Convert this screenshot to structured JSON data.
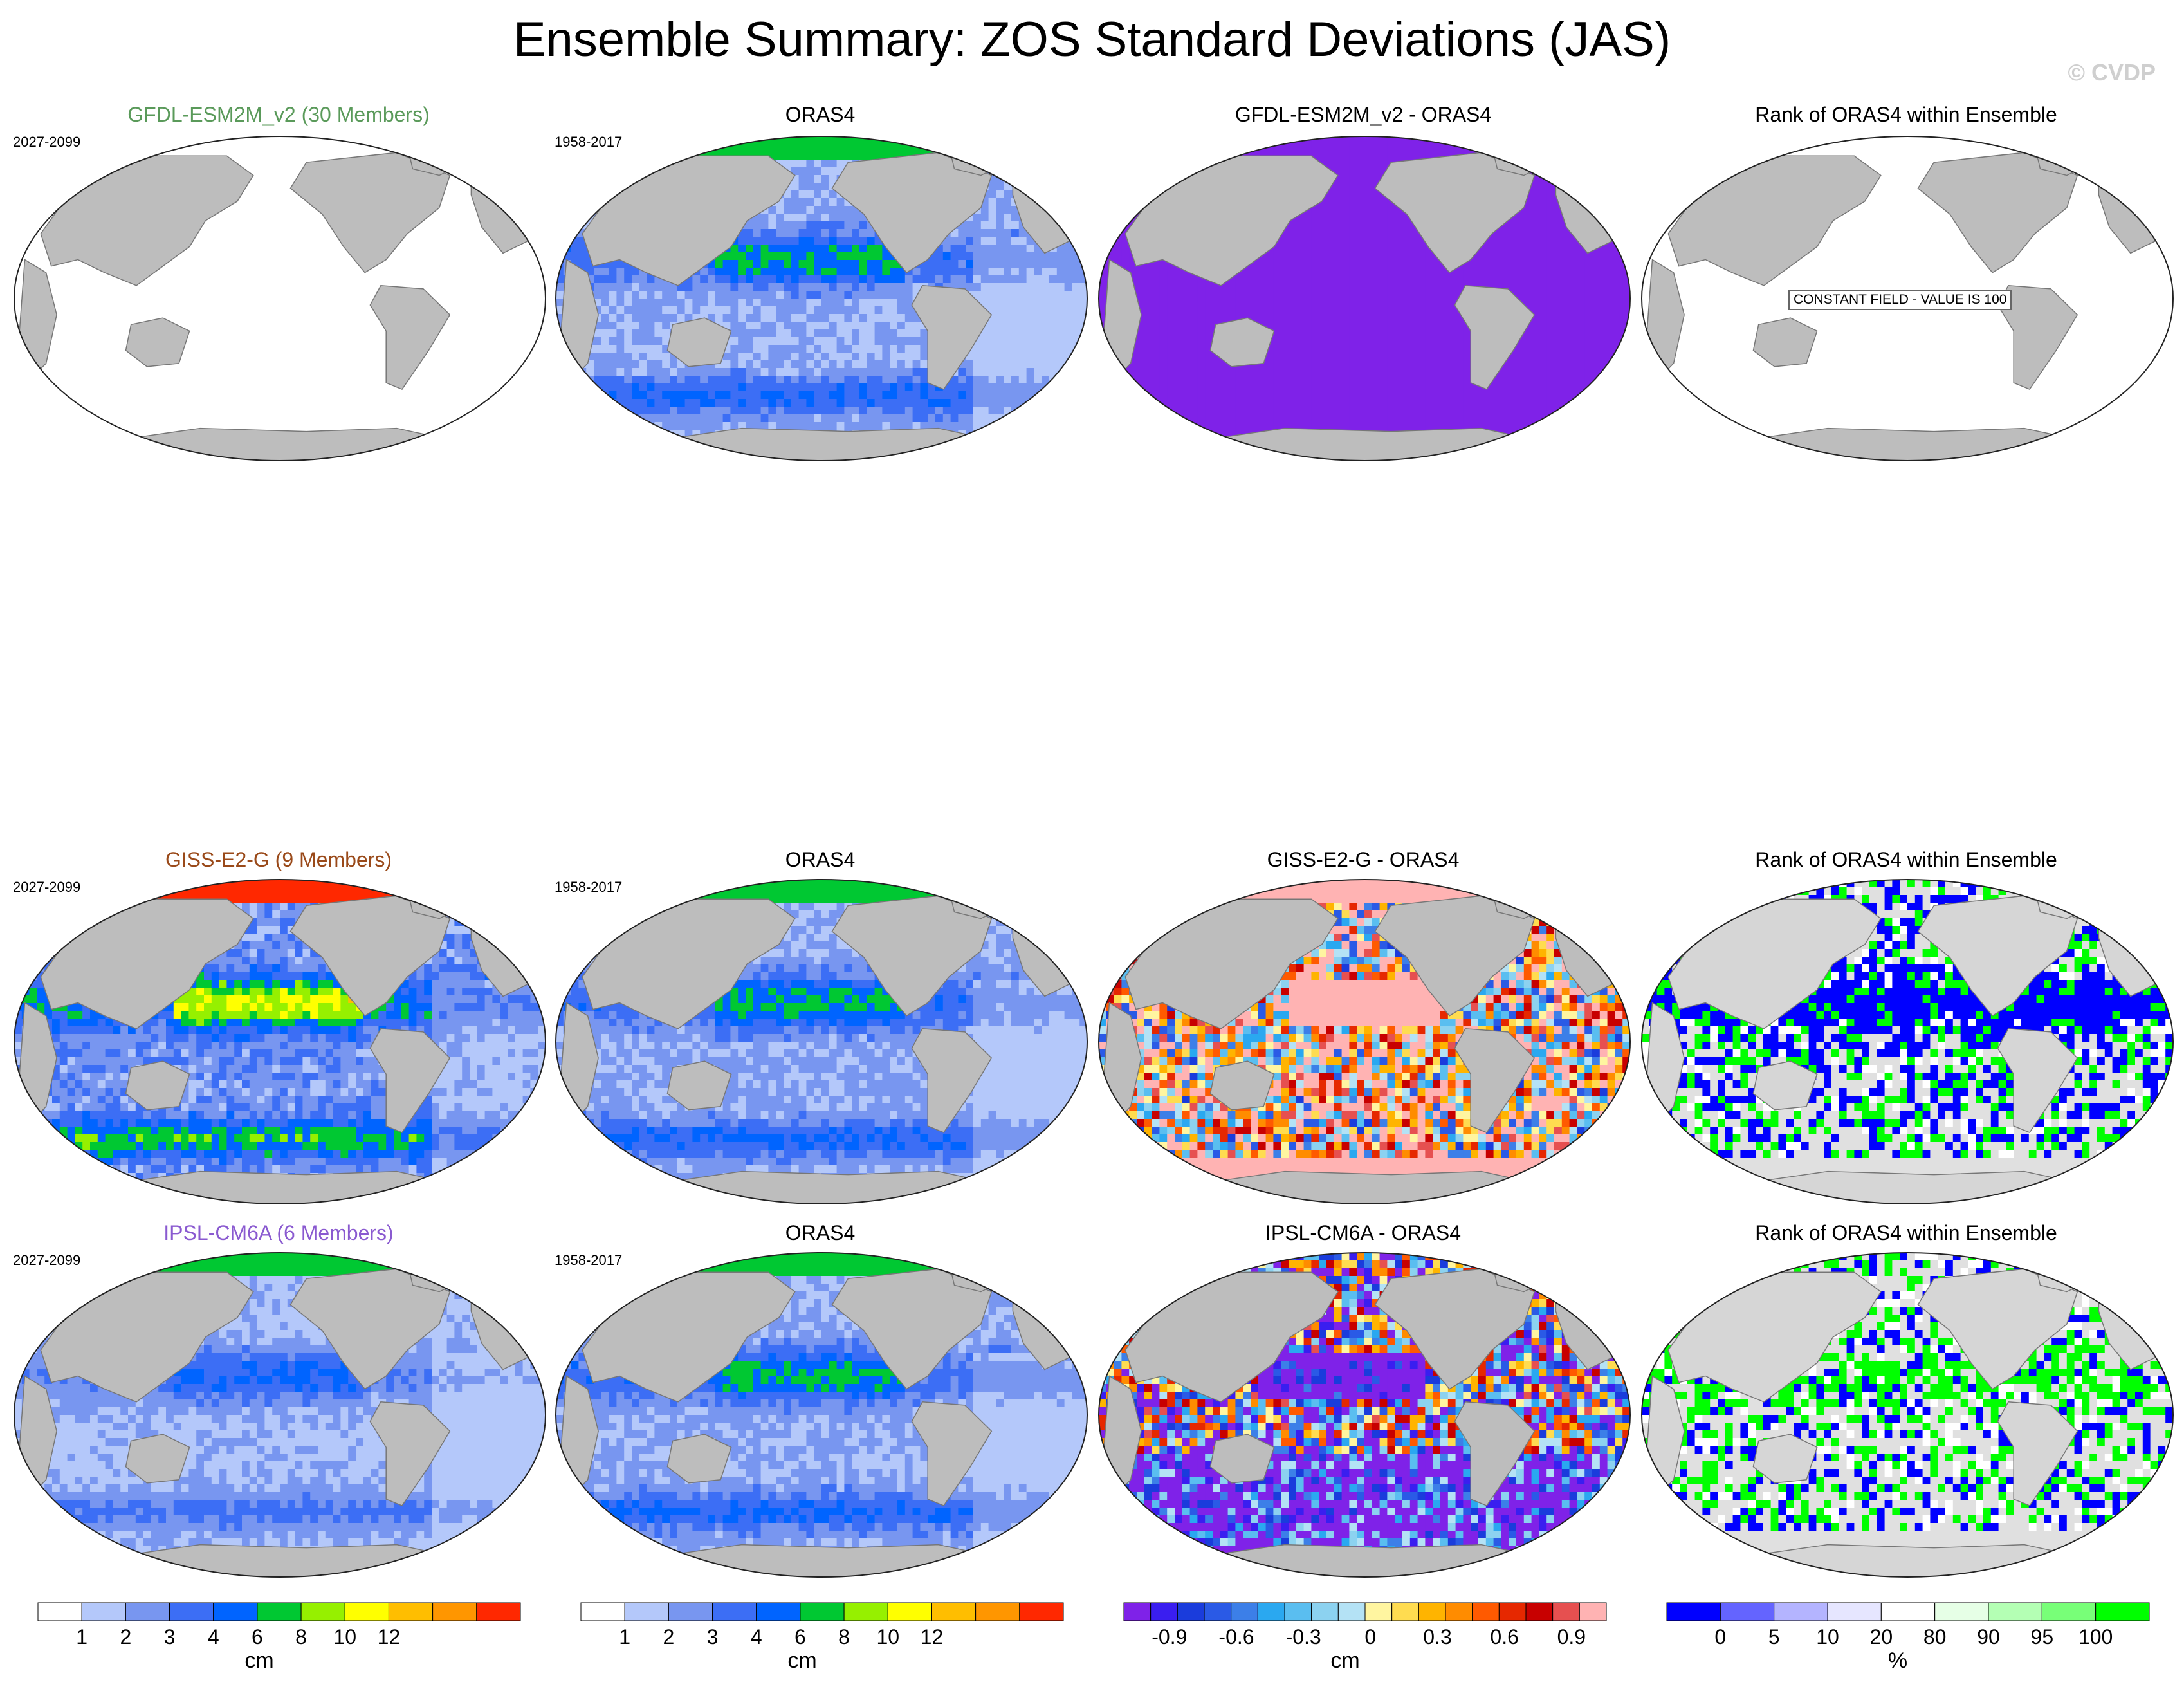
{
  "page": {
    "title": "Ensemble Summary: ZOS Standard Deviations (JAS)",
    "copyright": "© CVDP"
  },
  "colors": {
    "land": "#bdbdbd",
    "land_light": "#e0e0e0",
    "purple": "#7f22e8",
    "rank_blue": "#0000ff",
    "rank_green": "#00ff00",
    "pink": "#ffb3b3"
  },
  "rows": [
    {
      "model": {
        "title": "GFDL-ESM2M_v2 (30 Members)",
        "title_color": "#5a9a5a",
        "period": "2027-2099",
        "fill": "blank"
      },
      "obs": {
        "title": "ORAS4",
        "period": "1958-2017",
        "fill": "std"
      },
      "diff": {
        "title": "GFDL-ESM2M_v2 - ORAS4",
        "fill": "purple"
      },
      "rank": {
        "title": "Rank of ORAS4 within Ensemble",
        "fill": "constant",
        "note": "CONSTANT FIELD - VALUE IS 100"
      }
    },
    {
      "model": {
        "title": "GISS-E2-G (9 Members)",
        "title_color": "#9a4a1a",
        "period": "2027-2099",
        "fill": "std_strong"
      },
      "obs": {
        "title": "ORAS4",
        "period": "1958-2017",
        "fill": "std"
      },
      "diff": {
        "title": "GISS-E2-G - ORAS4",
        "fill": "diff_warm"
      },
      "rank": {
        "title": "Rank of ORAS4 within Ensemble",
        "fill": "rank_blue"
      }
    },
    {
      "model": {
        "title": "IPSL-CM6A (6 Members)",
        "title_color": "#8a5ad0",
        "period": "2027-2099",
        "fill": "std_weak"
      },
      "obs": {
        "title": "ORAS4",
        "period": "1958-2017",
        "fill": "std"
      },
      "diff": {
        "title": "IPSL-CM6A - ORAS4",
        "fill": "diff_cool"
      },
      "rank": {
        "title": "Rank of ORAS4 within Ensemble",
        "fill": "rank_green"
      }
    }
  ],
  "colorbars": [
    {
      "id": "std-model",
      "unit": "cm",
      "colors": [
        "#ffffff",
        "#b4c8fa",
        "#7896f0",
        "#3c6ef5",
        "#0064ff",
        "#00c832",
        "#96f000",
        "#ffff00",
        "#ffbe00",
        "#ff9600",
        "#ff2800"
      ],
      "ticks": [
        "1",
        "2",
        "3",
        "4",
        "6",
        "8",
        "10",
        "12"
      ]
    },
    {
      "id": "std-obs",
      "unit": "cm",
      "colors": [
        "#ffffff",
        "#b4c8fa",
        "#7896f0",
        "#3c6ef5",
        "#0064ff",
        "#00c832",
        "#96f000",
        "#ffff00",
        "#ffbe00",
        "#ff9600",
        "#ff2800"
      ],
      "ticks": [
        "1",
        "2",
        "3",
        "4",
        "6",
        "8",
        "10",
        "12"
      ]
    },
    {
      "id": "diff",
      "unit": "cm",
      "colors": [
        "#7f22e8",
        "#3a1ef0",
        "#1a3cdc",
        "#2a5ae6",
        "#3c7fe8",
        "#2aa8f0",
        "#5abef0",
        "#8cd2f0",
        "#b4e2f5",
        "#fff5a0",
        "#ffdc50",
        "#ffb400",
        "#ff8c00",
        "#ff5a00",
        "#e62800",
        "#c80000",
        "#e65050",
        "#ffb3b3"
      ],
      "ticks": [
        "-0.9",
        "-0.6",
        "-0.3",
        "0",
        "0.3",
        "0.6",
        "0.9"
      ]
    },
    {
      "id": "rank",
      "unit": "%",
      "colors": [
        "#0000ff",
        "#6464ff",
        "#b4b4ff",
        "#e6e6ff",
        "#ffffff",
        "#e6ffe6",
        "#b4ffb4",
        "#78ff78",
        "#00ff00"
      ],
      "ticks": [
        "0",
        "5",
        "10",
        "20",
        "80",
        "90",
        "95",
        "100"
      ]
    }
  ]
}
